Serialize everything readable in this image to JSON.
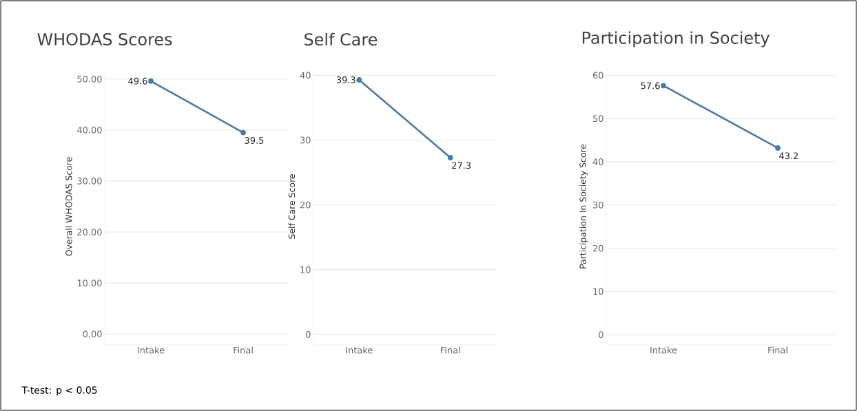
{
  "chart_data": [
    {
      "type": "line",
      "title": "WHODAS Scores",
      "ylabel": "Overall WHODAS Score",
      "categories": [
        "Intake",
        "Final"
      ],
      "values": [
        49.6,
        39.5
      ],
      "color": "#4e79a7",
      "ylim": [
        -2,
        52
      ],
      "yticks": [
        {
          "value": 0,
          "label": "0.00"
        },
        {
          "value": 10,
          "label": "10.00"
        },
        {
          "value": 20,
          "label": "20.00"
        },
        {
          "value": 30,
          "label": "30.00"
        },
        {
          "value": 40,
          "label": "40.00"
        },
        {
          "value": 50,
          "label": "50.00"
        }
      ],
      "grid": "y",
      "marker": "circle",
      "data_labels": true,
      "annotations": [
        "T-test: p < 0.05"
      ]
    },
    {
      "type": "line",
      "title": "Self Care",
      "ylabel": "Self Care Score",
      "categories": [
        "Intake",
        "Final"
      ],
      "values": [
        39.3,
        27.3
      ],
      "color": "#4e79a7",
      "ylim": [
        -1.5,
        41
      ],
      "yticks": [
        0,
        10,
        20,
        30,
        40
      ],
      "grid": "y",
      "marker": "circle",
      "data_labels": true
    },
    {
      "type": "line",
      "title": "Participation in Society",
      "ylabel": "Participation In Society Score",
      "categories": [
        "Intake",
        "Final"
      ],
      "values": [
        57.6,
        43.2
      ],
      "color": "#4e79a7",
      "ylim": [
        -2.2,
        61.5
      ],
      "yticks": [
        0,
        10,
        20,
        30,
        40,
        50,
        60
      ],
      "grid": "y",
      "marker": "circle",
      "data_labels": true
    }
  ]
}
